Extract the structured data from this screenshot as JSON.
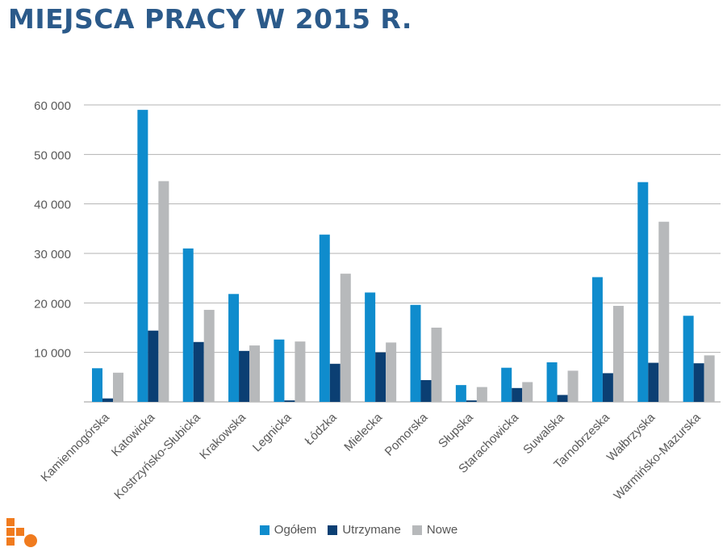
{
  "title": "MIEJSCA PRACY W 2015 R.",
  "colors": {
    "ogolem": "#0f8ccd",
    "utrzymane": "#0b3f73",
    "nowe": "#b7b9bb",
    "title": "#2b5a8a",
    "grid": "#b3b3b3",
    "axis_text": "#595959",
    "logo": "#f07b1e"
  },
  "chart_data": {
    "type": "bar",
    "title": "MIEJSCA PRACY W 2015 R.",
    "categories": [
      "Kamiennogórska",
      "Katowicka",
      "Kostrzyńsko-Słubicka",
      "Krakowska",
      "Legnicka",
      "Łódzka",
      "Mielecka",
      "Pomorska",
      "Słupska",
      "Starachowicka",
      "Suwalska",
      "Tarnobrzeska",
      "Wałbrzyska",
      "Warmińsko-Mazurska"
    ],
    "series": [
      {
        "name": "Ogółem",
        "color": "#0f8ccd",
        "values": [
          6800,
          59000,
          31000,
          21800,
          12600,
          33800,
          22100,
          19600,
          3400,
          6900,
          8000,
          25200,
          44400,
          17400
        ]
      },
      {
        "name": "Utrzymane",
        "color": "#0b3f73",
        "values": [
          700,
          14400,
          12100,
          10300,
          300,
          7700,
          10000,
          4400,
          300,
          2800,
          1400,
          5800,
          7900,
          7800
        ]
      },
      {
        "name": "Nowe",
        "color": "#b7b9bb",
        "values": [
          5900,
          44600,
          18600,
          11400,
          12200,
          25900,
          12000,
          15000,
          3000,
          4000,
          6300,
          19400,
          36400,
          9400
        ]
      }
    ],
    "yticks": [
      "",
      "10 000",
      "20 000",
      "30 000",
      "40 000",
      "50 000",
      "60 000"
    ],
    "ylim": [
      0,
      60000
    ],
    "grid": true,
    "legend_position": "bottom"
  },
  "legend": [
    {
      "label": "Ogółem",
      "color": "#0f8ccd"
    },
    {
      "label": "Utrzymane",
      "color": "#0b3f73"
    },
    {
      "label": "Nowe",
      "color": "#b7b9bb"
    }
  ]
}
